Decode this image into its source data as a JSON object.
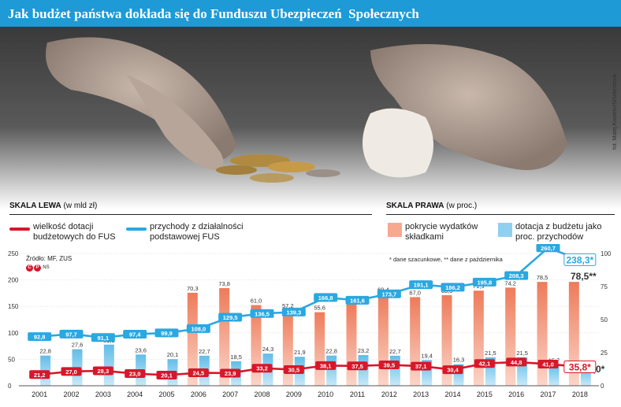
{
  "header": {
    "title": "Jak budżet państwa dokłada się do Funduszu Ubezpieczeń  Społecznych",
    "photo_credit": "fot. Matej Kastelic/Shutterstock"
  },
  "legend": {
    "left_scale_title": "SKALA LEWA",
    "left_scale_unit": " (w mld zł)",
    "right_scale_title": "SKALA PRAWA",
    "right_scale_unit": " (w proc.)",
    "item_subsidy": "wielkość dotacji budżetowych do FUS",
    "item_revenue": "przychody z działalności podstawowej FUS",
    "item_coverage": "pokrycie wydatków składkami",
    "item_subsidy_pct": "dotacja z budżetu jako proc. przychodów"
  },
  "notes": {
    "source": "Źródło: MF, ZUS",
    "footnote": "* dane szacunkowe, ** dane z października",
    "logo_text": "NS"
  },
  "colors": {
    "accent": "#1e9ad6",
    "subsidy_line": "#d7172a",
    "revenue_line": "#2aa8e0",
    "coverage_bar": "#f08c6c",
    "subsidy_pct_bar": "#7cc8ec"
  },
  "chart_data": {
    "type": "bar",
    "categories": [
      "2001",
      "2002",
      "2003",
      "2004",
      "2005",
      "2006",
      "2007",
      "2008",
      "2009",
      "2010",
      "2011",
      "2012",
      "2013",
      "2014",
      "2015",
      "2016",
      "2017",
      "2018"
    ],
    "left_axis": {
      "ylim": [
        0,
        250
      ],
      "ticks": [
        0,
        50,
        100,
        150,
        200,
        250
      ]
    },
    "right_axis": {
      "ylim": [
        0,
        100
      ],
      "ticks": [
        0,
        25,
        50,
        75,
        100
      ]
    },
    "series": [
      {
        "name": "wielkość dotacji budżetowych do FUS",
        "axis": "left",
        "kind": "line",
        "values": [
          21.2,
          27.0,
          28.3,
          23.0,
          20.1,
          24.5,
          23.9,
          33.2,
          30.5,
          38.1,
          37.5,
          39.5,
          37.1,
          30.4,
          42.1,
          44.8,
          41.0,
          35.8
        ],
        "labels": [
          "21,2",
          "27,0",
          "28,3",
          "23,0",
          "20,1",
          "24,5",
          "23,9",
          "33,2",
          "30,5",
          "38,1",
          "37,5",
          "39,5",
          "37,1",
          "30,4",
          "42,1",
          "44,8",
          "41,0",
          "35,8*"
        ]
      },
      {
        "name": "przychody z działalności podstawowej FUS",
        "axis": "left",
        "kind": "line",
        "values": [
          92.8,
          97.7,
          91.1,
          97.4,
          99.9,
          108.0,
          129.5,
          136.5,
          139.3,
          166.8,
          161.6,
          173.7,
          191.1,
          186.2,
          195.8,
          208.3,
          260.7,
          238.3
        ],
        "labels": [
          "92,8",
          "97,7",
          "91,1",
          "97,4",
          "99,9",
          "108,0",
          "129,5",
          "136,5",
          "139,3",
          "166,8",
          "161,6",
          "173,7",
          "191,1",
          "186,2",
          "195,8",
          "208,3",
          "260,7",
          "238,3*"
        ]
      },
      {
        "name": "pokrycie wydatków składkami",
        "axis": "right",
        "kind": "bar",
        "values": [
          null,
          null,
          null,
          null,
          null,
          70.3,
          73.8,
          61.0,
          57.2,
          55.6,
          61.6,
          69.4,
          67.0,
          68.5,
          71.9,
          74.2,
          78.5,
          78.5
        ],
        "labels": [
          "",
          "",
          "",
          "",
          "",
          "70,3",
          "73,8",
          "61,0",
          "57,2",
          "55,6",
          "61,6",
          "69,4",
          "67,0",
          "68,5",
          "71,9",
          "74,2",
          "78,5",
          "78,5**"
        ]
      },
      {
        "name": "dotacja z budżetu jako proc. przychodów",
        "axis": "right",
        "kind": "bar",
        "values": [
          22.8,
          27.6,
          31.1,
          23.6,
          20.1,
          22.7,
          18.5,
          24.3,
          21.9,
          22.8,
          23.2,
          22.7,
          19.4,
          16.3,
          21.5,
          21.5,
          15.7,
          15.0
        ],
        "labels": [
          "22,8",
          "27,6",
          "31,1",
          "23,6",
          "20,1",
          "22,7",
          "18,5",
          "24,3",
          "21,9",
          "22,8",
          "23,2",
          "22,7",
          "19,4",
          "16,3",
          "21,5",
          "21,5",
          "15,7",
          "15,0*"
        ]
      }
    ]
  }
}
